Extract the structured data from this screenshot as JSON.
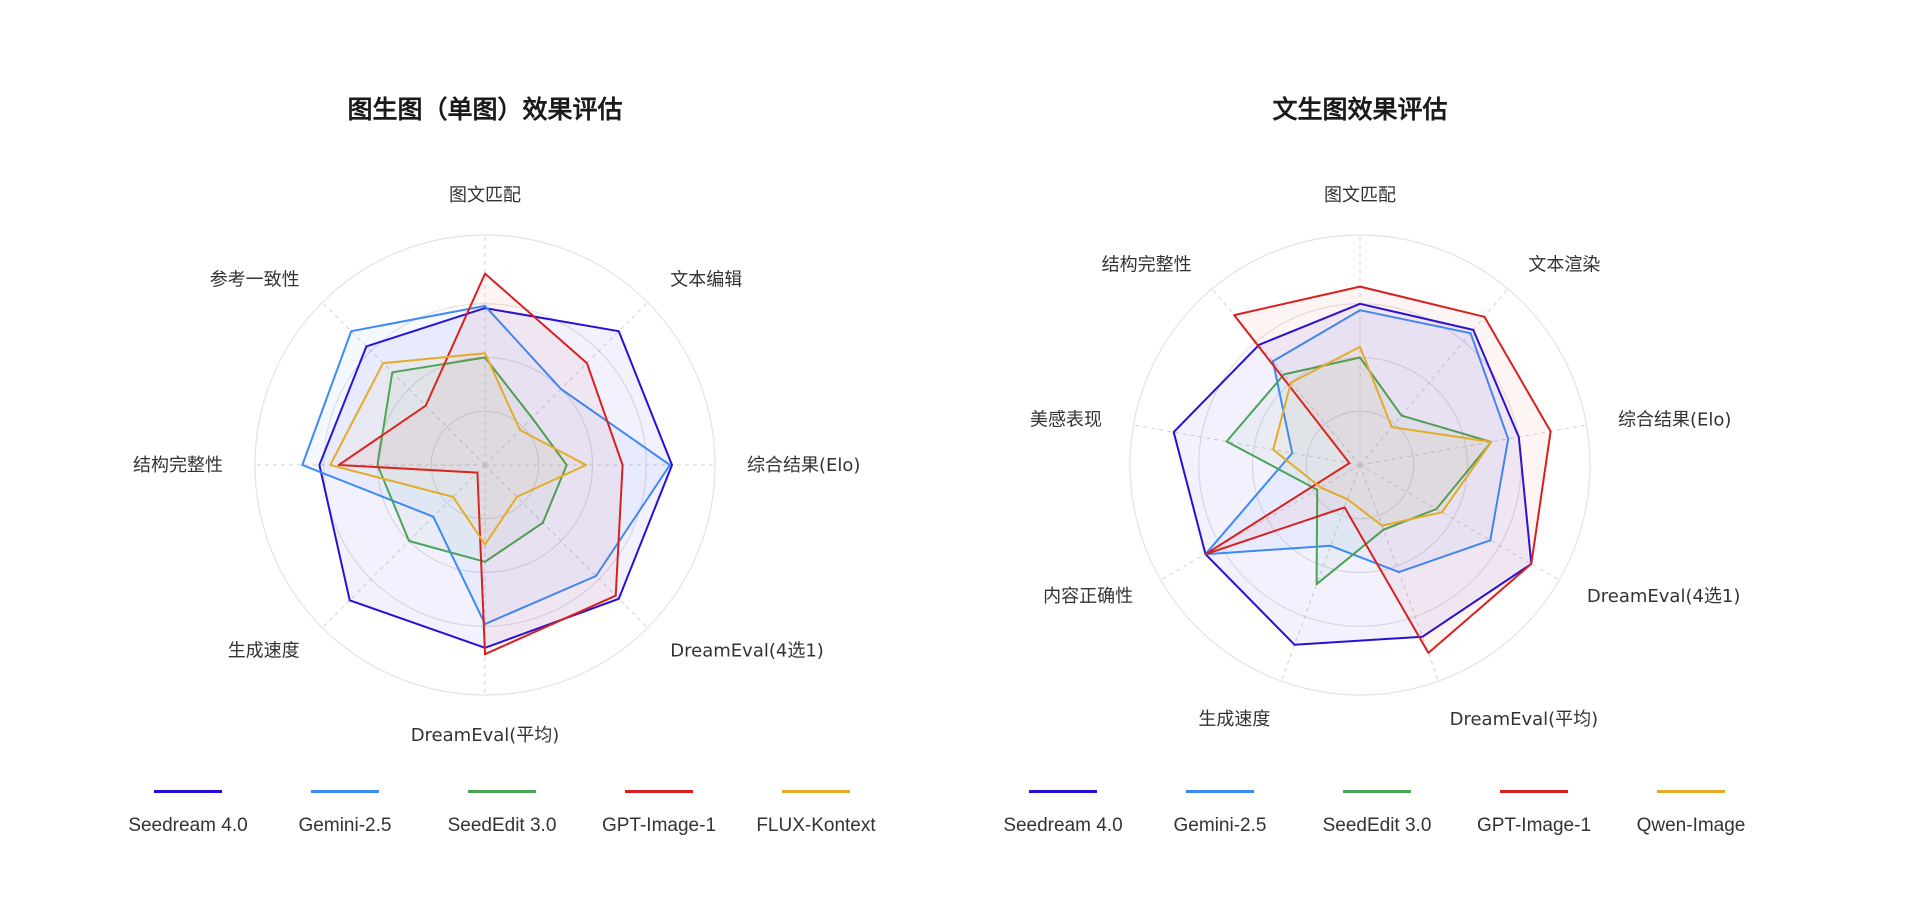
{
  "colors": {
    "series": [
      "#2411d8",
      "#3d8af7",
      "#4aa356",
      "#d8201f",
      "#e2ac2a"
    ],
    "grid": "#e3e3e6",
    "spoke": "#d2d2d6",
    "label": "#333333",
    "title": "#1a1a1a"
  },
  "chart_data": [
    {
      "type": "radar",
      "title": "图生图（单图）效果评估",
      "axes": [
        "图文匹配",
        "文本编辑",
        "综合结果(Elo)",
        "DreamEval(4选1)",
        "DreamEval(平均)",
        "生成速度",
        "结构完整性",
        "参考一致性"
      ],
      "range": [
        0,
        1
      ],
      "grid_rings": 4,
      "series": [
        {
          "name": "Seedream 4.0",
          "values": [
            0.73,
            0.88,
            0.87,
            0.88,
            0.85,
            0.89,
            0.77,
            0.78
          ]
        },
        {
          "name": "Gemini-2.5",
          "values": [
            0.74,
            0.5,
            0.86,
            0.73,
            0.74,
            0.34,
            0.85,
            0.88
          ]
        },
        {
          "name": "SeedEdit 3.0",
          "values": [
            0.5,
            0.31,
            0.38,
            0.38,
            0.45,
            0.5,
            0.5,
            0.61
          ]
        },
        {
          "name": "GPT-Image-1",
          "values": [
            0.89,
            0.67,
            0.64,
            0.86,
            0.88,
            0.05,
            0.68,
            0.39
          ]
        },
        {
          "name": "FLUX-Kontext",
          "values": [
            0.52,
            0.23,
            0.47,
            0.21,
            0.37,
            0.21,
            0.72,
            0.67
          ]
        }
      ]
    },
    {
      "type": "radar",
      "title": "文生图效果评估",
      "axes": [
        "图文匹配",
        "文本渲染",
        "综合结果(Elo)",
        "DreamEval(4选1)",
        "DreamEval(平均)",
        "生成速度",
        "内容正确性",
        "美感表现",
        "结构完整性"
      ],
      "range": [
        0,
        1
      ],
      "grid_rings": 4,
      "series": [
        {
          "name": "Seedream 4.0",
          "values": [
            0.75,
            0.82,
            0.75,
            0.92,
            0.85,
            0.89,
            0.83,
            0.88,
            0.73
          ]
        },
        {
          "name": "Gemini-2.5",
          "values": [
            0.72,
            0.8,
            0.7,
            0.7,
            0.53,
            0.4,
            0.83,
            0.32,
            0.63
          ]
        },
        {
          "name": "SeedEdit 3.0",
          "values": [
            0.5,
            0.3,
            0.62,
            0.41,
            0.32,
            0.59,
            0.23,
            0.63,
            0.55
          ]
        },
        {
          "name": "GPT-Image-1",
          "values": [
            0.83,
            0.9,
            0.9,
            0.92,
            0.93,
            0.21,
            0.83,
            0.05,
            0.91
          ]
        },
        {
          "name": "Qwen-Image",
          "values": [
            0.55,
            0.23,
            0.62,
            0.44,
            0.3,
            0.17,
            0.21,
            0.41,
            0.5
          ]
        }
      ]
    }
  ],
  "legends": [
    {
      "items": [
        "Seedream 4.0",
        "Gemini-2.5",
        "SeedEdit 3.0",
        "GPT-Image-1",
        "FLUX-Kontext"
      ]
    },
    {
      "items": [
        "Seedream 4.0",
        "Gemini-2.5",
        "SeedEdit 3.0",
        "GPT-Image-1",
        "Qwen-Image"
      ]
    }
  ]
}
